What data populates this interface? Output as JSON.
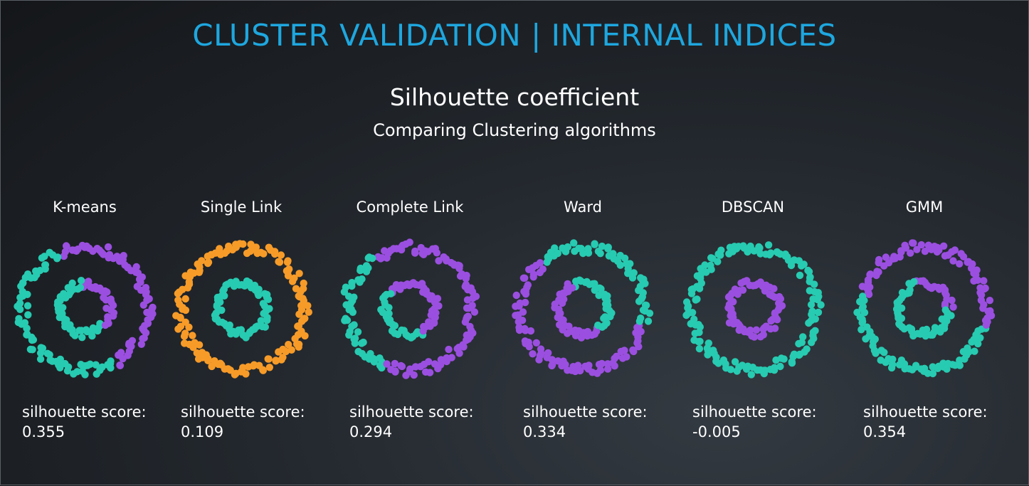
{
  "slide": {
    "title": "CLUSTER VALIDATION | INTERNAL INDICES",
    "subtitle": "Silhouette coefficient",
    "subsubtitle": "Comparing Clustering algorithms",
    "title_color": "#1ea7df"
  },
  "colors": {
    "teal": "#27cbb1",
    "purple": "#9b4fe0",
    "orange": "#f79b28"
  },
  "score_label": "silhouette score:",
  "panels": [
    {
      "name": "K-means",
      "score": "0.355",
      "scheme": "kmeans"
    },
    {
      "name": "Single Link",
      "score": "0.109",
      "scheme": "single"
    },
    {
      "name": "Complete Link",
      "score": "0.294",
      "scheme": "complete"
    },
    {
      "name": "Ward",
      "score": "0.334",
      "scheme": "ward"
    },
    {
      "name": "DBSCAN",
      "score": "-0.005",
      "scheme": "dbscan"
    },
    {
      "name": "GMM",
      "score": "0.354",
      "scheme": "gmm"
    }
  ]
}
